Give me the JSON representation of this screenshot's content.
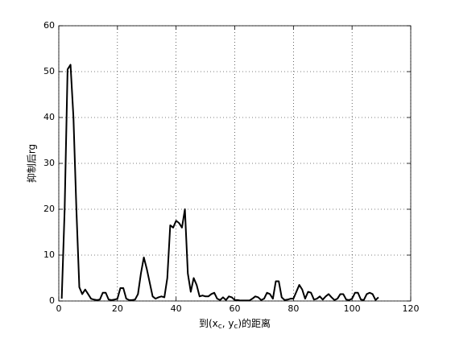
{
  "chart_data": {
    "type": "line",
    "ylabel": "抑制后rg",
    "xlabel": [
      "到(x",
      "c",
      ", y",
      "c",
      ")的距离"
    ],
    "x": [
      1,
      2,
      3,
      4,
      5,
      6,
      7,
      8,
      9,
      10,
      11,
      12,
      13,
      14,
      15,
      16,
      17,
      18,
      19,
      20,
      21,
      22,
      23,
      24,
      25,
      26,
      27,
      28,
      29,
      30,
      31,
      32,
      33,
      34,
      35,
      36,
      37,
      38,
      39,
      40,
      41,
      42,
      43,
      44,
      45,
      46,
      47,
      48,
      49,
      50,
      51,
      52,
      53,
      54,
      55,
      56,
      57,
      58,
      59,
      60,
      61,
      62,
      63,
      64,
      65,
      66,
      67,
      68,
      69,
      70,
      71,
      72,
      73,
      74,
      75,
      76,
      77,
      78,
      79,
      80,
      81,
      82,
      83,
      84,
      85,
      86,
      87,
      88,
      89,
      90,
      91,
      92,
      93,
      94,
      95,
      96,
      97,
      98,
      99,
      100,
      101,
      102,
      103,
      104,
      105,
      106,
      107,
      108,
      109
    ],
    "series": [
      {
        "name": "rg",
        "color": "#000000",
        "values": [
          0.5,
          20,
          50.5,
          51.5,
          40,
          20,
          3,
          1.5,
          2.5,
          1.5,
          0.5,
          0.3,
          0.2,
          0.3,
          1.8,
          1.8,
          0.3,
          0.2,
          0.3,
          0.5,
          2.8,
          2.8,
          0.5,
          0.2,
          0.2,
          0.3,
          1.5,
          6,
          9.5,
          7,
          4,
          1,
          0.5,
          0.8,
          1,
          0.8,
          5,
          16.5,
          16,
          17.5,
          17,
          16,
          20,
          6,
          2,
          5,
          3.5,
          1,
          1.2,
          1,
          1,
          1.5,
          1.8,
          0.5,
          0.2,
          0.8,
          0.2,
          1,
          0.8,
          0.2,
          0.2,
          0.1,
          0.1,
          0.1,
          0.1,
          0.5,
          1,
          0.8,
          0.2,
          0.5,
          1.8,
          1.5,
          0.5,
          4.3,
          4.3,
          0.8,
          0.2,
          0.3,
          0.5,
          0.5,
          2,
          3.5,
          2.5,
          0.5,
          2,
          1.8,
          0.3,
          0.5,
          1,
          0.3,
          1,
          1.5,
          0.8,
          0.2,
          0.5,
          1.5,
          1.5,
          0.3,
          0.2,
          0.5,
          1.8,
          1.8,
          0.3,
          0.2,
          1.5,
          1.8,
          1.5,
          0.2,
          0.8
        ]
      }
    ],
    "xlim": [
      0,
      120
    ],
    "xticks": [
      0,
      20,
      40,
      60,
      80,
      100,
      120
    ],
    "ylim": [
      0,
      60
    ],
    "yticks": [
      0,
      10,
      20,
      30,
      40,
      50,
      60
    ],
    "grid": true
  }
}
